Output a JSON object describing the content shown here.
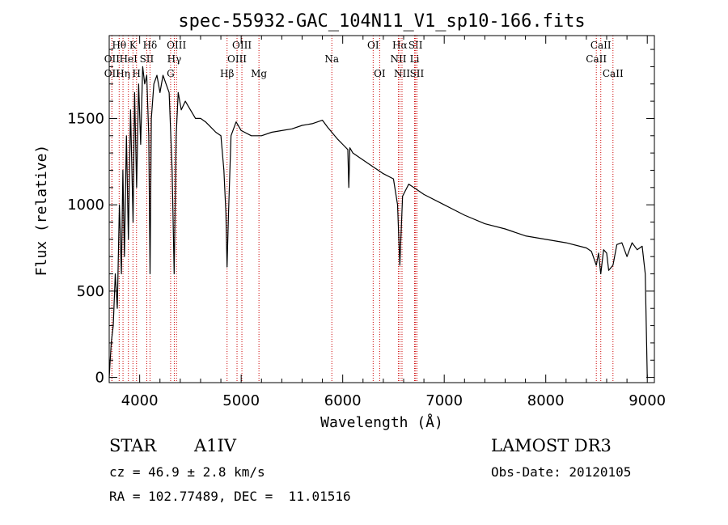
{
  "chart_data": {
    "type": "line",
    "title": "spec-55932-GAC_104N11_V1_sp10-166.fits",
    "xlabel": "Wavelength (Å)",
    "ylabel": "Flux (relative)",
    "xlim": [
      3700,
      9070
    ],
    "ylim": [
      -30,
      1980
    ],
    "xticks": [
      4000,
      5000,
      6000,
      7000,
      8000,
      9000
    ],
    "yticks": [
      0,
      500,
      1000,
      1500
    ],
    "series": [
      {
        "name": "Flux",
        "x": [
          3700,
          3720,
          3740,
          3760,
          3780,
          3800,
          3820,
          3835,
          3850,
          3870,
          3889,
          3910,
          3935,
          3950,
          3970,
          3990,
          4010,
          4030,
          4050,
          4070,
          4090,
          4102,
          4115,
          4140,
          4170,
          4200,
          4230,
          4260,
          4290,
          4320,
          4340,
          4360,
          4380,
          4410,
          4450,
          4500,
          4550,
          4600,
          4650,
          4700,
          4750,
          4800,
          4830,
          4850,
          4861,
          4875,
          4900,
          4950,
          5000,
          5100,
          5200,
          5300,
          5400,
          5500,
          5600,
          5700,
          5800,
          5850,
          5893,
          5950,
          6000,
          6050,
          6060,
          6070,
          6100,
          6200,
          6300,
          6400,
          6500,
          6540,
          6563,
          6590,
          6650,
          6700,
          6800,
          7000,
          7200,
          7400,
          7600,
          7800,
          8000,
          8200,
          8400,
          8450,
          8498,
          8520,
          8542,
          8570,
          8600,
          8620,
          8662,
          8700,
          8750,
          8800,
          8850,
          8900,
          8950,
          8980,
          9000
        ],
        "values": [
          0,
          200,
          300,
          600,
          400,
          1000,
          600,
          1200,
          700,
          1400,
          800,
          1550,
          900,
          1650,
          1100,
          1700,
          1350,
          1800,
          1700,
          1750,
          1400,
          600,
          1500,
          1700,
          1750,
          1650,
          1750,
          1700,
          1650,
          1200,
          600,
          1400,
          1650,
          1550,
          1600,
          1550,
          1500,
          1500,
          1480,
          1450,
          1420,
          1400,
          1200,
          950,
          640,
          950,
          1400,
          1480,
          1430,
          1400,
          1400,
          1420,
          1430,
          1440,
          1460,
          1470,
          1490,
          1450,
          1420,
          1380,
          1350,
          1320,
          1100,
          1330,
          1300,
          1260,
          1220,
          1180,
          1150,
          1000,
          650,
          1050,
          1120,
          1100,
          1060,
          1000,
          940,
          890,
          860,
          820,
          800,
          780,
          750,
          730,
          650,
          720,
          600,
          740,
          720,
          620,
          650,
          770,
          780,
          700,
          780,
          740,
          760,
          600,
          0
        ]
      }
    ],
    "line_markers": [
      {
        "label": "Hθ",
        "x": 3798,
        "row": 1
      },
      {
        "label": "OII",
        "x": 3727,
        "row": 2
      },
      {
        "label": "OII",
        "x": 3727,
        "row": 3
      },
      {
        "label": "Hη",
        "x": 3836,
        "row": 3
      },
      {
        "label": "K",
        "x": 3934,
        "row": 1
      },
      {
        "label": "HeI",
        "x": 3889,
        "row": 2
      },
      {
        "label": "H",
        "x": 3969,
        "row": 3
      },
      {
        "label": "Hδ",
        "x": 4102,
        "row": 1
      },
      {
        "label": "SII",
        "x": 4070,
        "row": 2
      },
      {
        "label": "OIII",
        "x": 4363,
        "row": 1
      },
      {
        "label": "Hγ",
        "x": 4341,
        "row": 2
      },
      {
        "label": "G",
        "x": 4305,
        "row": 3
      },
      {
        "label": "OIII",
        "x": 5007,
        "row": 1
      },
      {
        "label": "OIII",
        "x": 4959,
        "row": 2
      },
      {
        "label": "Hβ",
        "x": 4861,
        "row": 3
      },
      {
        "label": "Mg",
        "x": 5175,
        "row": 3
      },
      {
        "label": "Na",
        "x": 5893,
        "row": 2
      },
      {
        "label": "OI",
        "x": 6300,
        "row": 1
      },
      {
        "label": "OI",
        "x": 6364,
        "row": 3
      },
      {
        "label": "Hα",
        "x": 6563,
        "row": 1
      },
      {
        "label": "NII",
        "x": 6548,
        "row": 2
      },
      {
        "label": "NII",
        "x": 6584,
        "row": 3
      },
      {
        "label": "SII",
        "x": 6717,
        "row": 1
      },
      {
        "label": "Li",
        "x": 6708,
        "row": 2
      },
      {
        "label": "SII",
        "x": 6731,
        "row": 3
      },
      {
        "label": "CaII",
        "x": 8542,
        "row": 1
      },
      {
        "label": "CaII",
        "x": 8498,
        "row": 2
      },
      {
        "label": "CaII",
        "x": 8662,
        "row": 3
      }
    ]
  },
  "info": {
    "object_class": "STAR",
    "subclass": "A1IV",
    "survey": "LAMOST DR3",
    "cz": "cz = 46.9 ± 2.8 km/s",
    "obs_date": "Obs-Date: 20120105",
    "coords": "RA = 102.77489, DEC =  11.01516"
  }
}
